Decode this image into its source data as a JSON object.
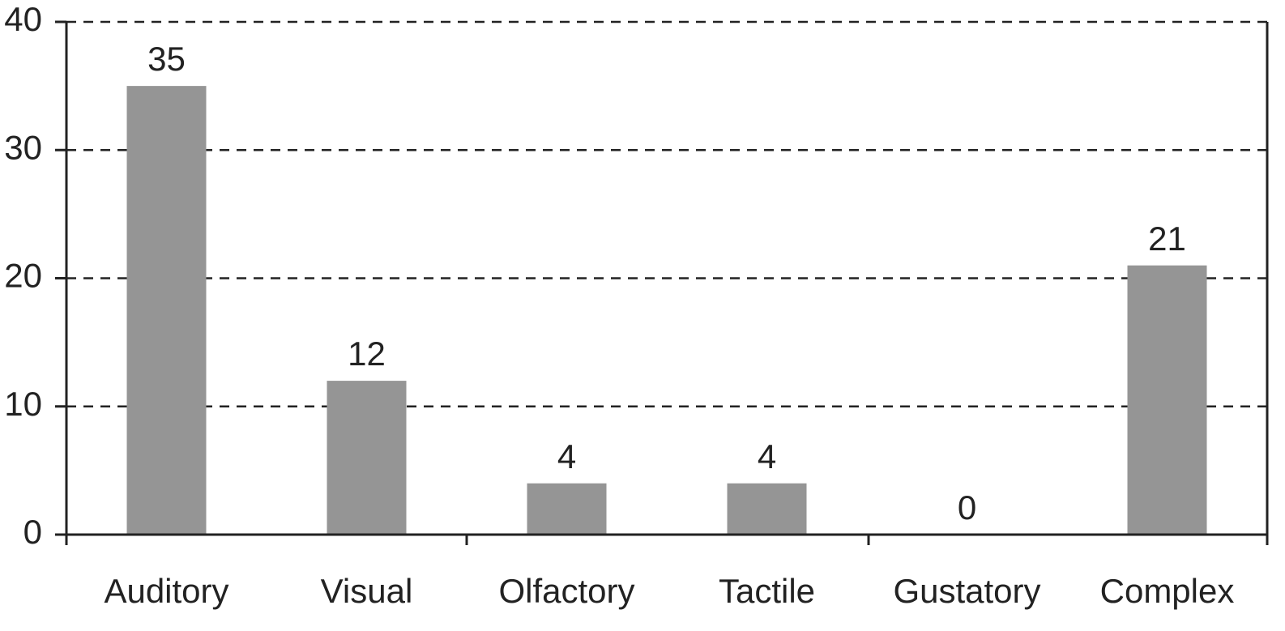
{
  "chart_data": {
    "type": "bar",
    "categories": [
      "Auditory",
      "Visual",
      "Olfactory",
      "Tactile",
      "Gustatory",
      "Complex"
    ],
    "values": [
      35,
      12,
      4,
      4,
      0,
      21
    ],
    "color": "#959595",
    "ylim": [
      0,
      40
    ],
    "yticks": [
      0,
      10,
      20,
      30,
      40
    ],
    "grid": true
  }
}
